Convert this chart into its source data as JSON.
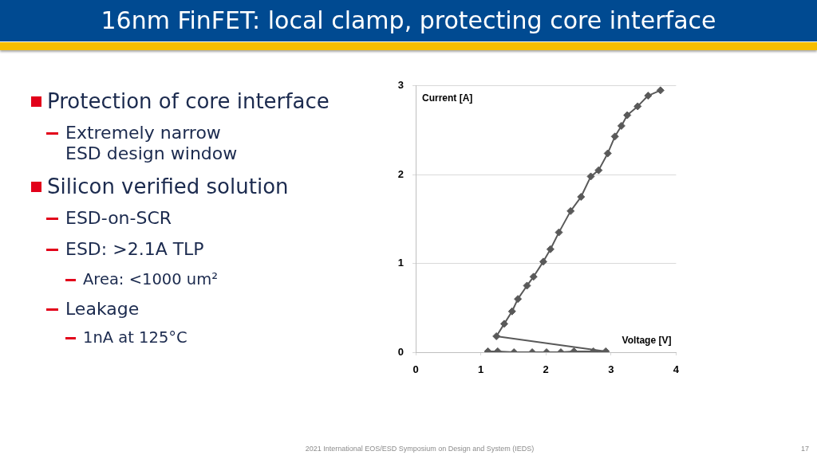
{
  "chart_data": {
    "type": "line",
    "title": "16nm FinFET: local clamp, protecting core interface",
    "xlabel": "Voltage [V]",
    "ylabel": "Current [A]",
    "x": [
      1.11,
      1.26,
      1.51,
      1.79,
      2.01,
      2.23,
      2.43,
      2.73,
      2.92,
      1.24,
      1.36,
      1.48,
      1.57,
      1.71,
      1.81,
      1.96,
      2.07,
      2.2,
      2.38,
      2.54,
      2.69,
      2.81,
      2.95,
      3.06,
      3.16,
      3.25,
      3.41,
      3.57,
      3.76
    ],
    "values": [
      0.01,
      0.01,
      0,
      0,
      0,
      0,
      0.01,
      0.01,
      0.01,
      0.18,
      0.32,
      0.46,
      0.6,
      0.75,
      0.85,
      1.02,
      1.16,
      1.35,
      1.59,
      1.75,
      1.98,
      2.05,
      2.24,
      2.43,
      2.55,
      2.67,
      2.77,
      2.89,
      2.95
    ],
    "color": "#595959",
    "marker": "diamond",
    "line_style": "solid",
    "xlim": [
      0,
      4
    ],
    "xticks": [
      0,
      1,
      2,
      3,
      4
    ],
    "ylim": [
      0,
      3
    ],
    "yticks": [
      0,
      1,
      2,
      3
    ],
    "grid": "y",
    "annotations": [
      "Protection of core interface",
      "Extremely narrow ESD design window",
      "Silicon verified solution",
      "ESD-on-SCR",
      "ESD: >2.1A TLP",
      "Area: <1000 um²",
      "Leakage",
      "1nA at 125°C",
      "2021 International EOS/ESD Symposium on Design and System (IEDS)",
      "17"
    ]
  }
}
